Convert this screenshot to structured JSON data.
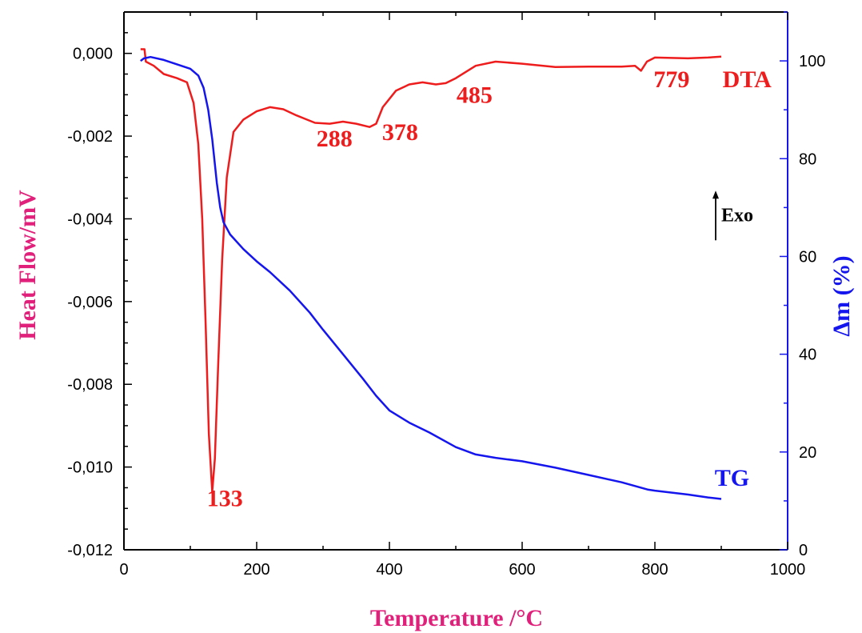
{
  "chart_data": {
    "type": "line",
    "title": "",
    "xlabel": "Temperature /°C",
    "ylabel_left": "Heat Flow/mV",
    "ylabel_right": "Δm (%)",
    "xlim": [
      0,
      1000
    ],
    "ylim_left": [
      -0.012,
      0.001
    ],
    "ylim_right": [
      0,
      110
    ],
    "x_ticks": [
      {
        "value": 0,
        "label": "0"
      },
      {
        "value": 200,
        "label": "200"
      },
      {
        "value": 400,
        "label": "400"
      },
      {
        "value": 600,
        "label": "600"
      },
      {
        "value": 800,
        "label": "800"
      },
      {
        "value": 1000,
        "label": "1000"
      }
    ],
    "y_left_ticks": [
      {
        "value": 0,
        "label": "0,000"
      },
      {
        "value": -0.002,
        "label": "-0,002"
      },
      {
        "value": -0.004,
        "label": "-0,004"
      },
      {
        "value": -0.006,
        "label": "-0,006"
      },
      {
        "value": -0.008,
        "label": "-0,008"
      },
      {
        "value": -0.01,
        "label": "-0,010"
      },
      {
        "value": -0.012,
        "label": "-0,012"
      }
    ],
    "y_right_ticks": [
      {
        "value": 0,
        "label": "0"
      },
      {
        "value": 20,
        "label": "20"
      },
      {
        "value": 40,
        "label": "40"
      },
      {
        "value": 60,
        "label": "60"
      },
      {
        "value": 80,
        "label": "80"
      },
      {
        "value": 100,
        "label": "100"
      }
    ],
    "grid": false,
    "series": [
      {
        "name": "DTA",
        "axis": "left",
        "color": "#ee1c1c",
        "points": [
          [
            25,
            0.0001
          ],
          [
            31,
            0.0001
          ],
          [
            33,
            -0.0002
          ],
          [
            45,
            -0.0003
          ],
          [
            60,
            -0.0005
          ],
          [
            80,
            -0.0006
          ],
          [
            95,
            -0.0007
          ],
          [
            105,
            -0.0012
          ],
          [
            112,
            -0.0022
          ],
          [
            118,
            -0.004
          ],
          [
            123,
            -0.0065
          ],
          [
            128,
            -0.0092
          ],
          [
            133,
            -0.0106
          ],
          [
            137,
            -0.0098
          ],
          [
            142,
            -0.0075
          ],
          [
            148,
            -0.005
          ],
          [
            155,
            -0.003
          ],
          [
            165,
            -0.0019
          ],
          [
            180,
            -0.0016
          ],
          [
            200,
            -0.0014
          ],
          [
            220,
            -0.0013
          ],
          [
            240,
            -0.00135
          ],
          [
            260,
            -0.0015
          ],
          [
            288,
            -0.00168
          ],
          [
            310,
            -0.0017
          ],
          [
            330,
            -0.00165
          ],
          [
            350,
            -0.0017
          ],
          [
            370,
            -0.00178
          ],
          [
            380,
            -0.0017
          ],
          [
            390,
            -0.0013
          ],
          [
            410,
            -0.0009
          ],
          [
            430,
            -0.00075
          ],
          [
            450,
            -0.0007
          ],
          [
            470,
            -0.00075
          ],
          [
            485,
            -0.00072
          ],
          [
            500,
            -0.0006
          ],
          [
            530,
            -0.0003
          ],
          [
            560,
            -0.0002
          ],
          [
            600,
            -0.00025
          ],
          [
            650,
            -0.00033
          ],
          [
            700,
            -0.00032
          ],
          [
            750,
            -0.00032
          ],
          [
            770,
            -0.0003
          ],
          [
            779,
            -0.00042
          ],
          [
            788,
            -0.0002
          ],
          [
            800,
            -0.0001
          ],
          [
            850,
            -0.00012
          ],
          [
            880,
            -0.0001
          ],
          [
            900,
            -8e-05
          ]
        ]
      },
      {
        "name": "TG",
        "axis": "right",
        "color": "#1515ee",
        "points": [
          [
            25,
            100
          ],
          [
            30,
            100.5
          ],
          [
            40,
            100.8
          ],
          [
            60,
            100.2
          ],
          [
            80,
            99.3
          ],
          [
            100,
            98.4
          ],
          [
            112,
            97
          ],
          [
            120,
            94.5
          ],
          [
            127,
            90
          ],
          [
            133,
            84
          ],
          [
            140,
            75
          ],
          [
            145,
            70
          ],
          [
            150,
            67
          ],
          [
            160,
            64.5
          ],
          [
            180,
            61.5
          ],
          [
            200,
            59
          ],
          [
            220,
            56.8
          ],
          [
            250,
            53
          ],
          [
            280,
            48.5
          ],
          [
            300,
            45
          ],
          [
            330,
            40
          ],
          [
            360,
            35
          ],
          [
            380,
            31.5
          ],
          [
            400,
            28.5
          ],
          [
            430,
            26
          ],
          [
            460,
            24
          ],
          [
            500,
            21
          ],
          [
            530,
            19.5
          ],
          [
            560,
            18.8
          ],
          [
            600,
            18.1
          ],
          [
            650,
            16.8
          ],
          [
            700,
            15.3
          ],
          [
            750,
            13.8
          ],
          [
            790,
            12.3
          ],
          [
            800,
            12.1
          ],
          [
            850,
            11.3
          ],
          [
            880,
            10.7
          ],
          [
            900,
            10.4
          ]
        ]
      }
    ],
    "annotations": [
      {
        "text": "133",
        "x": 125,
        "y_left": -0.01095
      },
      {
        "text": "288",
        "x": 290,
        "y_left": -0.00225
      },
      {
        "text": "378",
        "x": 389,
        "y_left": -0.0021
      },
      {
        "text": "485",
        "x": 501,
        "y_left": -0.0012
      },
      {
        "text": "779",
        "x": 798,
        "y_left": -0.00082
      },
      {
        "text": "DTA",
        "x": 902,
        "y_left": -0.00082
      },
      {
        "text": "TG",
        "x": 890,
        "y_left": -0.01045
      }
    ],
    "exo_label": {
      "text": "Exo",
      "x": 900,
      "y_left": -0.0039
    },
    "colors": {
      "left_axis_title": "#e0207a",
      "right_axis": "#1515ee",
      "dta": "#ee1c1c",
      "tg": "#1515ee",
      "x_axis_title": "#e0207a"
    }
  }
}
